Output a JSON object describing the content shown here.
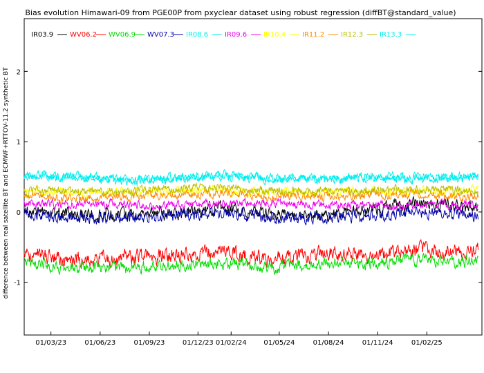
{
  "chart_data": {
    "type": "line",
    "title": "Bias evolution Himawari-09 from PGE00P from pxyclear dataset using robust regression (diffBT@standard_value)",
    "ylabel": "difference between real satellite BT and ECMWF+RTTOV-11.2 synthetic BT",
    "xlabel": "",
    "ylim": [
      -1.75,
      2.75
    ],
    "yticks": [
      -1,
      0,
      1,
      2
    ],
    "xlim": [
      "2023-01-10",
      "2025-05-15"
    ],
    "xticks": [
      {
        "date": "2023-03-01",
        "label": "01/03/23"
      },
      {
        "date": "2023-06-01",
        "label": "01/06/23"
      },
      {
        "date": "2023-09-01",
        "label": "01/09/23"
      },
      {
        "date": "2023-12-01",
        "label": "01/12/23"
      },
      {
        "date": "2024-02-01",
        "label": "01/02/24"
      },
      {
        "date": "2024-05-01",
        "label": "01/05/24"
      },
      {
        "date": "2024-08-01",
        "label": "01/08/24"
      },
      {
        "date": "2024-11-01",
        "label": "01/11/24"
      },
      {
        "date": "2025-02-01",
        "label": "01/02/25"
      }
    ],
    "grid": false,
    "legend_position": "top-left",
    "series": [
      {
        "name": "IR03.9",
        "color": "#000000",
        "x": [
          "2023-01-15",
          "2023-04-15",
          "2023-07-15",
          "2023-10-15",
          "2024-01-15",
          "2024-04-15",
          "2024-07-15",
          "2024-10-15",
          "2025-01-15",
          "2025-05-10"
        ],
        "values": [
          0.0,
          -0.02,
          -0.05,
          -0.02,
          0.05,
          -0.03,
          -0.05,
          0.05,
          0.12,
          0.05
        ]
      },
      {
        "name": "WV06.2",
        "color": "#ff0000",
        "x": [
          "2023-01-15",
          "2023-04-15",
          "2023-07-15",
          "2023-10-15",
          "2024-01-15",
          "2024-04-15",
          "2024-07-15",
          "2024-10-15",
          "2025-01-15",
          "2025-05-10"
        ],
        "values": [
          -0.6,
          -0.67,
          -0.67,
          -0.6,
          -0.55,
          -0.67,
          -0.6,
          -0.6,
          -0.55,
          -0.55
        ]
      },
      {
        "name": "WV06.9",
        "color": "#00dd00",
        "x": [
          "2023-01-15",
          "2023-04-15",
          "2023-07-15",
          "2023-10-15",
          "2024-01-15",
          "2024-04-15",
          "2024-07-15",
          "2024-10-15",
          "2025-01-15",
          "2025-05-10"
        ],
        "values": [
          -0.72,
          -0.8,
          -0.8,
          -0.75,
          -0.72,
          -0.8,
          -0.72,
          -0.72,
          -0.68,
          -0.7
        ]
      },
      {
        "name": "WV07.3",
        "color": "#0000aa",
        "x": [
          "2023-01-15",
          "2023-04-15",
          "2023-07-15",
          "2023-10-15",
          "2024-01-15",
          "2024-04-15",
          "2024-07-15",
          "2024-10-15",
          "2025-01-15",
          "2025-05-10"
        ],
        "values": [
          -0.02,
          -0.08,
          -0.08,
          -0.05,
          -0.02,
          -0.08,
          -0.08,
          -0.05,
          0.0,
          -0.05
        ]
      },
      {
        "name": "IR08.6",
        "color": "#00eeee",
        "x": [
          "2023-01-15",
          "2023-04-15",
          "2023-07-15",
          "2023-10-15",
          "2024-01-15",
          "2024-04-15",
          "2024-07-15",
          "2024-10-15",
          "2025-01-15",
          "2025-05-10"
        ],
        "values": [
          0.52,
          0.5,
          0.45,
          0.48,
          0.52,
          0.47,
          0.48,
          0.5,
          0.48,
          0.5
        ]
      },
      {
        "name": "IR09.6",
        "color": "#ee00ee",
        "x": [
          "2023-01-15",
          "2023-04-15",
          "2023-07-15",
          "2023-10-15",
          "2024-01-15",
          "2024-04-15",
          "2024-07-15",
          "2024-10-15",
          "2025-01-15",
          "2025-05-10"
        ],
        "values": [
          0.12,
          0.12,
          0.1,
          0.1,
          0.12,
          0.12,
          0.1,
          0.1,
          0.1,
          0.1
        ]
      },
      {
        "name": "IR10.4",
        "color": "#ffff00",
        "x": [
          "2023-01-15",
          "2023-04-15",
          "2023-07-15",
          "2023-10-15",
          "2024-01-15",
          "2024-04-15",
          "2024-07-15",
          "2024-10-15",
          "2025-01-15",
          "2025-05-10"
        ],
        "values": [
          0.3,
          0.27,
          0.28,
          0.3,
          0.32,
          0.28,
          0.28,
          0.3,
          0.3,
          0.3
        ]
      },
      {
        "name": "IR11.2",
        "color": "#ff8800",
        "x": [
          "2023-01-15",
          "2023-04-15",
          "2023-07-15",
          "2023-10-15",
          "2024-01-15",
          "2024-04-15",
          "2024-07-15",
          "2024-10-15",
          "2025-01-15",
          "2025-05-10"
        ],
        "values": [
          0.22,
          0.2,
          0.2,
          0.25,
          0.27,
          0.22,
          0.22,
          0.25,
          0.25,
          0.22
        ]
      },
      {
        "name": "IR12.3",
        "color": "#bbbb00",
        "x": [
          "2023-01-15",
          "2023-04-15",
          "2023-07-15",
          "2023-10-15",
          "2024-01-15",
          "2024-04-15",
          "2024-07-15",
          "2024-10-15",
          "2025-01-15",
          "2025-05-10"
        ],
        "values": [
          0.3,
          0.28,
          0.3,
          0.33,
          0.35,
          0.3,
          0.3,
          0.32,
          0.32,
          0.3
        ]
      },
      {
        "name": "IR13.3",
        "color": "#00eeee",
        "x": [
          "2023-01-15",
          "2023-04-15",
          "2023-07-15",
          "2023-10-15",
          "2024-01-15",
          "2024-04-15",
          "2024-07-15",
          "2024-10-15",
          "2025-01-15",
          "2025-05-10"
        ],
        "values": [
          0.52,
          0.5,
          0.45,
          0.48,
          0.52,
          0.47,
          0.48,
          0.5,
          0.48,
          0.5
        ]
      }
    ]
  }
}
